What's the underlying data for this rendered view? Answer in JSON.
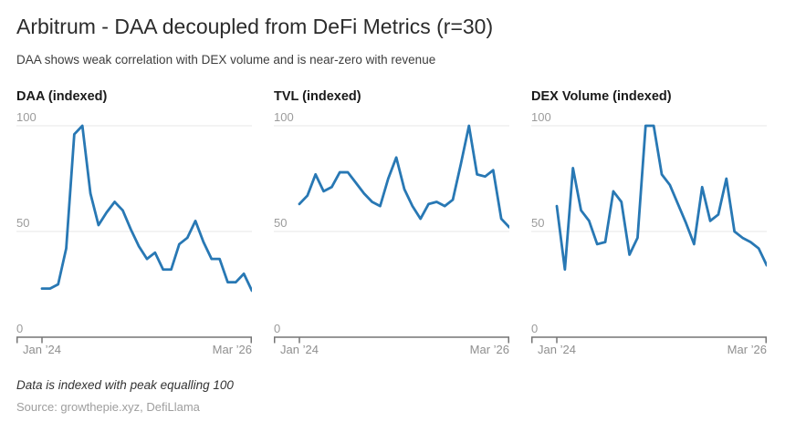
{
  "header": {
    "title": "Arbitrum - DAA decoupled from DeFi Metrics (r=30)",
    "subtitle": "DAA shows weak correlation with DEX volume and is near-zero with revenue"
  },
  "footer": {
    "note": "Data is indexed with peak equalling 100",
    "source": "Source: growthepie.xyz, DefiLlama"
  },
  "colors": {
    "line": "#2878b4",
    "grid": "#e7e7e7",
    "axis": "#757575",
    "y_label": "#9b9b9b",
    "x_label": "#8f8f8f"
  },
  "chart_data": [
    {
      "type": "line",
      "title": "DAA (indexed)",
      "x_start": "Jan 2024",
      "x_end": "Mar 2026",
      "x_frequency": "monthly",
      "x_tick_labels": [
        "Jan ’24",
        "Mar ’26"
      ],
      "ylim": [
        0,
        100
      ],
      "yticks": [
        0,
        50,
        100
      ],
      "grid": true,
      "values": [
        23,
        23,
        25,
        42,
        96,
        100,
        68,
        53,
        59,
        64,
        60,
        51,
        43,
        37,
        40,
        32,
        32,
        44,
        47,
        55,
        45,
        37,
        37,
        26,
        26,
        30,
        22
      ]
    },
    {
      "type": "line",
      "title": "TVL (indexed)",
      "x_start": "Jan 2024",
      "x_end": "Mar 2026",
      "x_frequency": "monthly",
      "x_tick_labels": [
        "Jan ’24",
        "Mar ’26"
      ],
      "ylim": [
        0,
        100
      ],
      "yticks": [
        0,
        50,
        100
      ],
      "grid": true,
      "values": [
        63,
        67,
        77,
        69,
        71,
        78,
        78,
        73,
        68,
        64,
        62,
        75,
        85,
        70,
        62,
        56,
        63,
        64,
        62,
        65,
        82,
        100,
        77,
        76,
        79,
        56,
        52
      ]
    },
    {
      "type": "line",
      "title": "DEX Volume (indexed)",
      "x_start": "Jan 2024",
      "x_end": "Mar 2026",
      "x_frequency": "monthly",
      "x_tick_labels": [
        "Jan ’24",
        "Mar ’26"
      ],
      "ylim": [
        0,
        100
      ],
      "yticks": [
        0,
        50,
        100
      ],
      "grid": true,
      "values": [
        62,
        32,
        80,
        60,
        55,
        44,
        45,
        69,
        64,
        39,
        47,
        100,
        100,
        77,
        72,
        63,
        54,
        44,
        71,
        55,
        58,
        75,
        50,
        47,
        45,
        42,
        34
      ]
    }
  ]
}
